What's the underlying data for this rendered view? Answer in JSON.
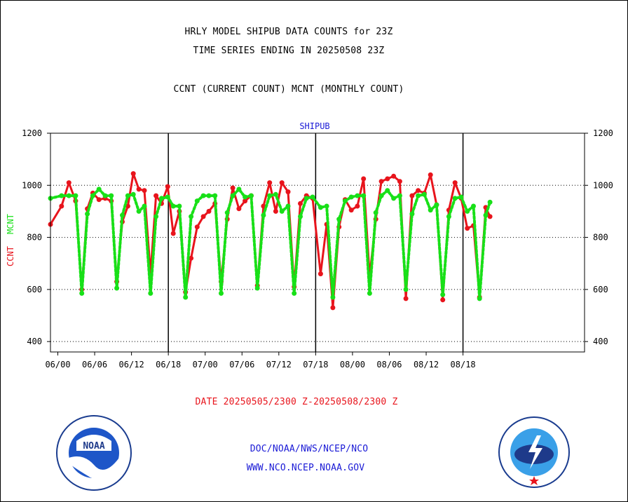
{
  "header": {
    "title_line1": "HRLY MODEL SHIPUB DATA COUNTS for 23Z",
    "title_line2": "TIME SERIES ENDING IN 20250508 23Z",
    "subtitle": "CCNT (CURRENT COUNT) MCNT (MONTHLY COUNT)"
  },
  "footer": {
    "date_range": "DATE 20250505/2300 Z-20250508/2300 Z",
    "org_line": "DOC/NOAA/NWS/NCEP/NCO",
    "url_line": "WWW.NCO.NCEP.NOAA.GOV",
    "noaa_logo_text": "NOAA",
    "noaa_seal_text": "NATIONAL OCEANIC AND ATMOSPHERIC ADMINISTRATION · U.S. DEPARTMENT OF COMMERCE",
    "nws_seal_text": "NATIONAL WEATHER SERVICE"
  },
  "colors": {
    "ccnt": "#e8141c",
    "mcnt": "#18e018",
    "title_blue": "#1a1ad6"
  },
  "chart_data": {
    "type": "line",
    "title": "SHIPUB",
    "ylabel_ccnt": "CCNT",
    "ylabel_mcnt": "MCNT",
    "ylim": [
      360,
      1200
    ],
    "yticks": [
      400,
      600,
      800,
      1000,
      1200
    ],
    "grid": "horizontal dotted at 400, 600, 800, 1000",
    "xrange_days": [
      -1.2,
      85.8
    ],
    "xtick_labels": [
      "06/00",
      "06/06",
      "06/12",
      "06/18",
      "07/00",
      "07/06",
      "07/12",
      "07/18",
      "08/00",
      "08/06",
      "08/12",
      "08/18"
    ],
    "xtick_days": [
      0,
      6,
      12,
      18,
      24,
      30,
      36,
      42,
      48,
      54,
      60,
      66
    ],
    "separators_days": [
      18,
      42,
      66
    ],
    "series": [
      {
        "name": "CCNT",
        "style": "solid",
        "points": [
          [
            -1.2,
            850
          ],
          [
            0.6,
            920
          ],
          [
            1.8,
            1010
          ],
          [
            2.9,
            940
          ],
          [
            3.9,
            600
          ],
          [
            4.8,
            910
          ],
          [
            5.7,
            970
          ],
          [
            6.7,
            945
          ],
          [
            7.7,
            950
          ],
          [
            8.7,
            940
          ],
          [
            9.6,
            630
          ],
          [
            10.5,
            860
          ],
          [
            11.4,
            920
          ],
          [
            12.3,
            1045
          ],
          [
            13.2,
            985
          ],
          [
            14.1,
            980
          ],
          [
            15.1,
            660
          ],
          [
            16.0,
            960
          ],
          [
            16.9,
            930
          ],
          [
            17.9,
            995
          ],
          [
            18.8,
            815
          ],
          [
            19.8,
            900
          ],
          [
            20.8,
            590
          ],
          [
            21.7,
            720
          ],
          [
            22.7,
            840
          ],
          [
            23.7,
            880
          ],
          [
            24.6,
            900
          ],
          [
            25.6,
            930
          ],
          [
            26.6,
            630
          ],
          [
            27.6,
            870
          ],
          [
            28.5,
            990
          ],
          [
            29.5,
            910
          ],
          [
            30.5,
            940
          ],
          [
            31.5,
            960
          ],
          [
            32.5,
            615
          ],
          [
            33.5,
            920
          ],
          [
            34.5,
            1010
          ],
          [
            35.5,
            900
          ],
          [
            36.5,
            1010
          ],
          [
            37.5,
            975
          ],
          [
            38.5,
            610
          ],
          [
            39.5,
            930
          ],
          [
            40.5,
            960
          ],
          [
            41.5,
            950
          ],
          [
            42.8,
            660
          ],
          [
            43.8,
            850
          ],
          [
            44.8,
            530
          ],
          [
            45.8,
            840
          ],
          [
            46.8,
            945
          ],
          [
            47.8,
            905
          ],
          [
            48.8,
            920
          ],
          [
            49.8,
            1025
          ],
          [
            50.8,
            650
          ],
          [
            51.8,
            870
          ],
          [
            52.7,
            1015
          ],
          [
            53.7,
            1025
          ],
          [
            54.7,
            1035
          ],
          [
            55.7,
            1015
          ],
          [
            56.7,
            565
          ],
          [
            57.7,
            960
          ],
          [
            58.7,
            980
          ],
          [
            59.7,
            970
          ],
          [
            60.7,
            1040
          ],
          [
            61.7,
            925
          ],
          [
            62.7,
            560
          ],
          [
            63.7,
            905
          ],
          [
            64.7,
            1010
          ],
          [
            65.7,
            950
          ],
          [
            66.7,
            835
          ],
          [
            67.7,
            845
          ],
          [
            68.7,
            570
          ],
          [
            69.7,
            915
          ],
          [
            70.4,
            880
          ]
        ]
      },
      {
        "name": "MCNT",
        "style": "dotted",
        "points": [
          [
            -1.2,
            950
          ],
          [
            0.6,
            960
          ],
          [
            1.8,
            960
          ],
          [
            2.9,
            960
          ],
          [
            3.9,
            585
          ],
          [
            4.8,
            890
          ],
          [
            5.7,
            960
          ],
          [
            6.7,
            985
          ],
          [
            7.7,
            960
          ],
          [
            8.7,
            960
          ],
          [
            9.6,
            605
          ],
          [
            10.5,
            885
          ],
          [
            11.4,
            960
          ],
          [
            12.3,
            965
          ],
          [
            13.2,
            900
          ],
          [
            14.1,
            920
          ],
          [
            15.1,
            585
          ],
          [
            16.0,
            880
          ],
          [
            16.9,
            950
          ],
          [
            17.9,
            955
          ],
          [
            18.8,
            920
          ],
          [
            19.8,
            920
          ],
          [
            20.8,
            570
          ],
          [
            21.7,
            880
          ],
          [
            22.7,
            940
          ],
          [
            23.7,
            960
          ],
          [
            24.6,
            960
          ],
          [
            25.6,
            960
          ],
          [
            26.6,
            585
          ],
          [
            27.6,
            895
          ],
          [
            28.5,
            960
          ],
          [
            29.5,
            985
          ],
          [
            30.5,
            955
          ],
          [
            31.5,
            960
          ],
          [
            32.5,
            605
          ],
          [
            33.5,
            885
          ],
          [
            34.5,
            960
          ],
          [
            35.5,
            965
          ],
          [
            36.5,
            900
          ],
          [
            37.5,
            920
          ],
          [
            38.5,
            585
          ],
          [
            39.5,
            880
          ],
          [
            40.5,
            950
          ],
          [
            41.5,
            955
          ],
          [
            42.8,
            915
          ],
          [
            43.8,
            920
          ],
          [
            44.8,
            570
          ],
          [
            45.8,
            870
          ],
          [
            46.8,
            940
          ],
          [
            47.8,
            955
          ],
          [
            48.8,
            960
          ],
          [
            49.8,
            960
          ],
          [
            50.8,
            585
          ],
          [
            51.8,
            895
          ],
          [
            52.7,
            960
          ],
          [
            53.7,
            980
          ],
          [
            54.7,
            950
          ],
          [
            55.7,
            960
          ],
          [
            56.7,
            600
          ],
          [
            57.7,
            890
          ],
          [
            58.7,
            960
          ],
          [
            59.7,
            965
          ],
          [
            60.7,
            905
          ],
          [
            61.7,
            925
          ],
          [
            62.7,
            580
          ],
          [
            63.7,
            880
          ],
          [
            64.7,
            950
          ],
          [
            65.7,
            955
          ],
          [
            66.7,
            900
          ],
          [
            67.7,
            920
          ],
          [
            68.7,
            565
          ],
          [
            69.7,
            885
          ],
          [
            70.4,
            935
          ]
        ]
      }
    ]
  }
}
